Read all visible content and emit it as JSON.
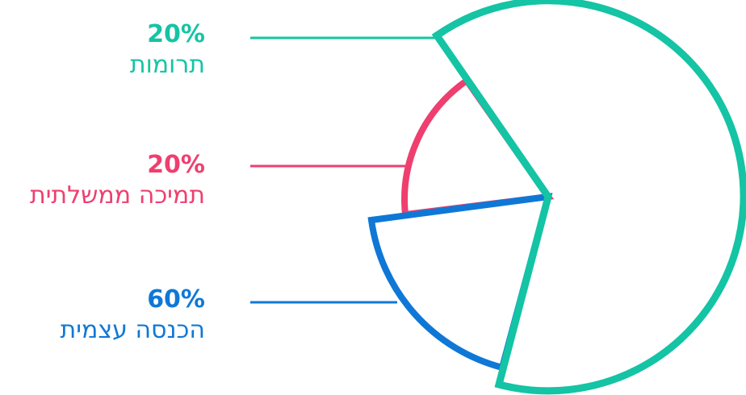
{
  "chart_data": {
    "type": "pie",
    "style": "outline-slices-with-leader-lines",
    "slices": [
      {
        "percent_label": "20%",
        "label": "תרומות",
        "value": 20,
        "color": "#14c4a4",
        "radius_scale": 1.0
      },
      {
        "percent_label": "20%",
        "label": "תמיכה ממשלתית",
        "value": 20,
        "color": "#ee3f6f",
        "radius_scale": 0.45
      },
      {
        "percent_label": "60%",
        "label": "הכנסה עצמית",
        "value": 60,
        "color": "#0f78d6",
        "radius_scale": 0.6
      }
    ]
  }
}
